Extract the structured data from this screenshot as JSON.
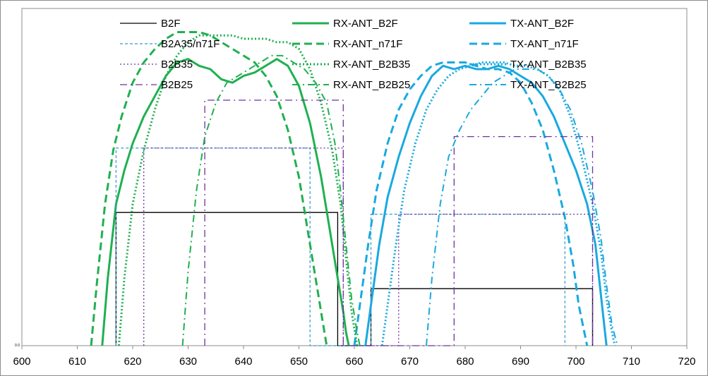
{
  "chart_data": {
    "type": "line",
    "xlim": [
      600,
      720
    ],
    "ylim": [
      0,
      1
    ],
    "x_ticks": [
      600,
      610,
      620,
      630,
      640,
      650,
      660,
      670,
      680,
      690,
      700,
      710,
      720
    ],
    "y_tick_label": "0.0",
    "grid": false,
    "legend_position": "top",
    "colors": {
      "black": "#000000",
      "green": "#1fb050",
      "blue": "#19a9e0",
      "purple": "#7030a0",
      "boxblue": "#3399cc"
    },
    "series": [
      {
        "name": "B2F",
        "color": "#000000",
        "style": "solid",
        "width": 1.3,
        "x": [
          617,
          617,
          657,
          657,
          663,
          663,
          703,
          703
        ],
        "y": [
          0,
          0.395,
          0.395,
          0,
          0,
          0.169,
          0.169,
          0
        ]
      },
      {
        "name": "RX-ANT_B2F",
        "color": "#1fb050",
        "style": "solid",
        "width": 3,
        "x": [
          614.5,
          615.5,
          617,
          618.5,
          620,
          622,
          624,
          626,
          628,
          630,
          632,
          634,
          636,
          638,
          640,
          642,
          644,
          646,
          648,
          650,
          652,
          654,
          655.5,
          657,
          658,
          658.5,
          659
        ],
        "y": [
          0,
          0.2,
          0.42,
          0.52,
          0.6,
          0.68,
          0.74,
          0.8,
          0.84,
          0.85,
          0.83,
          0.82,
          0.79,
          0.78,
          0.8,
          0.81,
          0.83,
          0.85,
          0.83,
          0.77,
          0.66,
          0.5,
          0.35,
          0.2,
          0.1,
          0.04,
          0
        ]
      },
      {
        "name": "TX-ANT_B2F",
        "color": "#19a9e0",
        "style": "solid",
        "width": 3,
        "x": [
          662,
          663,
          664.5,
          666,
          668,
          670,
          672,
          674,
          676,
          678,
          680,
          682,
          684,
          686,
          688,
          690,
          692,
          694,
          696,
          698,
          700,
          702,
          703.5,
          704.5,
          705.5
        ],
        "y": [
          0,
          0.12,
          0.3,
          0.44,
          0.56,
          0.66,
          0.74,
          0.8,
          0.83,
          0.82,
          0.83,
          0.82,
          0.82,
          0.83,
          0.82,
          0.8,
          0.78,
          0.74,
          0.68,
          0.6,
          0.52,
          0.42,
          0.3,
          0.15,
          0
        ]
      },
      {
        "name": "B2A35/n71F",
        "color": "#3399cc",
        "style": "dashed-thin",
        "width": 1.2,
        "x": [
          617,
          617,
          652,
          652,
          663,
          663,
          698,
          698
        ],
        "y": [
          0,
          0.586,
          0.586,
          0,
          0,
          0.39,
          0.39,
          0
        ]
      },
      {
        "name": "RX-ANT_n71F",
        "color": "#1fb050",
        "style": "dashed",
        "width": 3,
        "x": [
          612.5,
          613.5,
          615,
          616.5,
          618,
          620,
          622,
          624,
          626,
          628,
          630,
          632,
          634,
          636,
          638,
          640,
          642,
          644,
          646,
          648,
          650,
          652,
          653.5,
          654.5,
          655
        ],
        "y": [
          0,
          0.18,
          0.42,
          0.58,
          0.68,
          0.78,
          0.84,
          0.88,
          0.91,
          0.93,
          0.93,
          0.93,
          0.92,
          0.9,
          0.88,
          0.86,
          0.84,
          0.8,
          0.74,
          0.64,
          0.5,
          0.3,
          0.15,
          0.05,
          0
        ]
      },
      {
        "name": "TX-ANT_n71F",
        "color": "#19a9e0",
        "style": "dashed",
        "width": 3,
        "x": [
          660,
          661,
          662.5,
          664,
          666,
          668,
          670,
          672,
          674,
          676,
          678,
          680,
          682,
          684,
          686,
          688,
          690,
          692,
          694,
          696,
          698,
          699.5,
          700.5,
          701.5,
          702
        ],
        "y": [
          0,
          0.12,
          0.3,
          0.46,
          0.6,
          0.7,
          0.76,
          0.8,
          0.83,
          0.84,
          0.84,
          0.84,
          0.83,
          0.82,
          0.82,
          0.81,
          0.78,
          0.72,
          0.64,
          0.52,
          0.38,
          0.24,
          0.12,
          0.04,
          0
        ]
      },
      {
        "name": "B2B35",
        "color": "#7030a0",
        "style": "dotted",
        "width": 1.3,
        "x": [
          622,
          622,
          658,
          658,
          668,
          668,
          703,
          703
        ],
        "y": [
          0,
          0.586,
          0.586,
          0,
          0,
          0.39,
          0.39,
          0
        ]
      },
      {
        "name": "RX-ANT_B2B35",
        "color": "#1fb050",
        "style": "dotted",
        "width": 3,
        "x": [
          617.5,
          618.5,
          620,
          622,
          624,
          626,
          628,
          630,
          632,
          634,
          636,
          638,
          640,
          642,
          644,
          646,
          648,
          650,
          652,
          654,
          656,
          657.5,
          658.5,
          659.5,
          660.5
        ],
        "y": [
          0,
          0.2,
          0.42,
          0.58,
          0.7,
          0.8,
          0.86,
          0.9,
          0.92,
          0.92,
          0.92,
          0.92,
          0.91,
          0.91,
          0.91,
          0.9,
          0.9,
          0.88,
          0.82,
          0.72,
          0.58,
          0.42,
          0.26,
          0.1,
          0
        ]
      },
      {
        "name": "TX-ANT_B2B35",
        "color": "#19a9e0",
        "style": "dotted",
        "width": 3,
        "x": [
          665,
          666,
          667.5,
          669,
          671,
          673,
          675,
          677,
          679,
          681,
          683,
          685,
          687,
          689,
          691,
          693,
          695,
          697,
          699,
          701,
          703,
          704.5,
          705.5,
          706.5,
          707
        ],
        "y": [
          0,
          0.12,
          0.3,
          0.46,
          0.6,
          0.7,
          0.76,
          0.8,
          0.82,
          0.83,
          0.84,
          0.84,
          0.84,
          0.83,
          0.83,
          0.82,
          0.8,
          0.76,
          0.68,
          0.56,
          0.42,
          0.28,
          0.14,
          0.04,
          0
        ]
      },
      {
        "name": "B2B25",
        "color": "#7030a0",
        "style": "dashdot",
        "width": 1.3,
        "x": [
          633,
          633,
          658,
          658,
          678,
          678,
          703,
          703
        ],
        "y": [
          0,
          0.728,
          0.728,
          0,
          0,
          0.62,
          0.62,
          0
        ]
      },
      {
        "name": "RX-ANT_B2B25",
        "color": "#1fb050",
        "style": "dashdot",
        "width": 2,
        "x": [
          629,
          630,
          631.5,
          633,
          635,
          637,
          639,
          641,
          643,
          645,
          647,
          649,
          651,
          653,
          655,
          656.5,
          657.5,
          658.5,
          659.5,
          660.5,
          661
        ],
        "y": [
          0,
          0.22,
          0.46,
          0.62,
          0.72,
          0.78,
          0.8,
          0.82,
          0.84,
          0.86,
          0.86,
          0.84,
          0.82,
          0.78,
          0.72,
          0.6,
          0.46,
          0.3,
          0.14,
          0.04,
          0
        ]
      },
      {
        "name": "TX-ANT_B2B25",
        "color": "#19a9e0",
        "style": "dashdot",
        "width": 2,
        "x": [
          673,
          674,
          675.5,
          677,
          679,
          681,
          683,
          685,
          687,
          689,
          691,
          693,
          695,
          697,
          699,
          701,
          703,
          704.5,
          705.5,
          706.5,
          707.5
        ],
        "y": [
          0,
          0.2,
          0.42,
          0.56,
          0.64,
          0.7,
          0.74,
          0.78,
          0.8,
          0.82,
          0.82,
          0.82,
          0.8,
          0.76,
          0.7,
          0.6,
          0.46,
          0.32,
          0.18,
          0.06,
          0
        ]
      }
    ],
    "legend_order": [
      [
        "B2F",
        "RX-ANT_B2F",
        "TX-ANT_B2F"
      ],
      [
        "B2A35/n71F",
        "RX-ANT_n71F",
        "TX-ANT_n71F"
      ],
      [
        "B2B35",
        "RX-ANT_B2B35",
        "TX-ANT_B2B35"
      ],
      [
        "B2B25",
        "RX-ANT_B2B25",
        "TX-ANT_B2B25"
      ]
    ]
  }
}
